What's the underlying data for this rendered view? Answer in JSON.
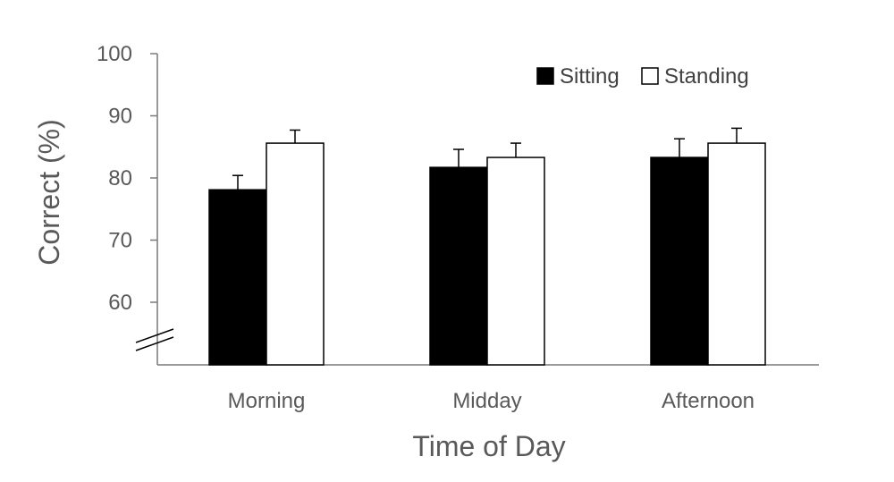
{
  "chart_data": {
    "type": "bar",
    "title": "",
    "xlabel": "Time of Day",
    "ylabel": "Correct (%)",
    "categories": [
      "Morning",
      "Midday",
      "Afternoon"
    ],
    "y_ticks": [
      60,
      70,
      80,
      90,
      100
    ],
    "y_tick_labels": [
      "60",
      "70",
      "80",
      "90",
      "100"
    ],
    "ylim": [
      50,
      100
    ],
    "axis_break": true,
    "grid": false,
    "legend_position": "top-right",
    "series": [
      {
        "name": "Sitting",
        "color": "#000000",
        "values": [
          78.1,
          81.7,
          83.3
        ],
        "error": [
          2.3,
          2.9,
          3.0
        ]
      },
      {
        "name": "Standing",
        "color": "#ffffff",
        "values": [
          85.6,
          83.3,
          85.6
        ],
        "error": [
          2.1,
          2.3,
          2.4
        ]
      }
    ]
  }
}
